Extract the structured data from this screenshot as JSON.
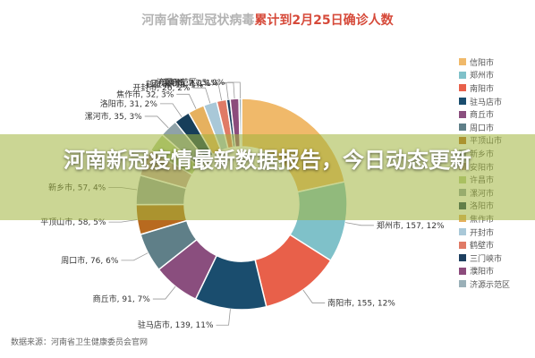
{
  "title": {
    "part1": "河南省新型冠状病毒",
    "part2": "累计到2月25日确诊人数",
    "part3": ""
  },
  "banner": "河南新冠疫情最新数据报告，今日动态更新",
  "source": "数据来源：河南省卫生健康委员会官网",
  "chart_data": {
    "type": "pie",
    "donut": true,
    "title": "河南省新型冠状病毒累计到2月25日确诊人数",
    "slices": [
      {
        "name": "信阳市",
        "value": 274,
        "percent": 22,
        "label": "",
        "color": "#f0b96a"
      },
      {
        "name": "郑州市",
        "value": 157,
        "percent": 12,
        "label": "郑州市, 157, 12%",
        "color": "#7fc1c9"
      },
      {
        "name": "南阳市",
        "value": 155,
        "percent": 12,
        "label": "南阳市, 155, 12%",
        "color": "#e8604a"
      },
      {
        "name": "驻马店市",
        "value": 139,
        "percent": 11,
        "label": "驻马店市, 139, 11%",
        "color": "#1a4d6e"
      },
      {
        "name": "商丘市",
        "value": 91,
        "percent": 7,
        "label": "商丘市, 91, 7%",
        "color": "#8a4e7e"
      },
      {
        "name": "周口市",
        "value": 76,
        "percent": 6,
        "label": "周口市, 76, 6%",
        "color": "#5f7f88"
      },
      {
        "name": "平顶山市",
        "value": 58,
        "percent": 5,
        "label": "平顶山市, 58, 5%",
        "color": "#b86a1f"
      },
      {
        "name": "新乡市",
        "value": 57,
        "percent": 4,
        "label": "新乡市, 57, 4%",
        "color": "#9aa5a8"
      },
      {
        "name": "安阳市",
        "value": 52,
        "percent": 4,
        "label": "",
        "color": "#c8a6a6"
      },
      {
        "name": "许昌市",
        "value": 37,
        "percent": 3,
        "label": "",
        "color": "#b5cf8f"
      },
      {
        "name": "漯河市",
        "value": 35,
        "percent": 3,
        "label": "漯河市, 35, 3%",
        "color": "#8fa2a8"
      },
      {
        "name": "洛阳市",
        "value": 31,
        "percent": 2,
        "label": "洛阳市, 31, 2%",
        "color": "#173e5a"
      },
      {
        "name": "焦作市",
        "value": 32,
        "percent": 3,
        "label": "焦作市, 32, 3%",
        "color": "#e6b15f"
      },
      {
        "name": "开封市",
        "value": 26,
        "percent": 2,
        "label": "开封市, 26, 2%",
        "color": "#a9c8d8"
      },
      {
        "name": "鹤壁市",
        "value": 19,
        "percent": 1,
        "label": "鹤壁市, 19, 1%",
        "color": "#e07a66"
      },
      {
        "name": "三门峡市",
        "value": 7,
        "percent": 1,
        "label": "三门峡市, 7, 1%",
        "color": "#1d3f5f"
      },
      {
        "name": "濮阳市",
        "value": 17,
        "percent": 1,
        "label": "濮阳市, 17, 1%",
        "color": "#8c4b7c"
      },
      {
        "name": "济源示范区",
        "value": 5,
        "percent": 0,
        "label": "济源示范区, 5, 0%",
        "color": "#9ab0b8"
      }
    ],
    "legend": [
      "信阳市",
      "郑州市",
      "南阳市",
      "驻马店市",
      "商丘市",
      "周口市",
      "平顶山市",
      "新乡市",
      "安阳市",
      "许昌市",
      "漯河市",
      "洛阳市",
      "焦作市",
      "开封市",
      "鹤壁市",
      "三门峡市",
      "濮阳市",
      "济源示范区"
    ],
    "legend_position": "right"
  }
}
